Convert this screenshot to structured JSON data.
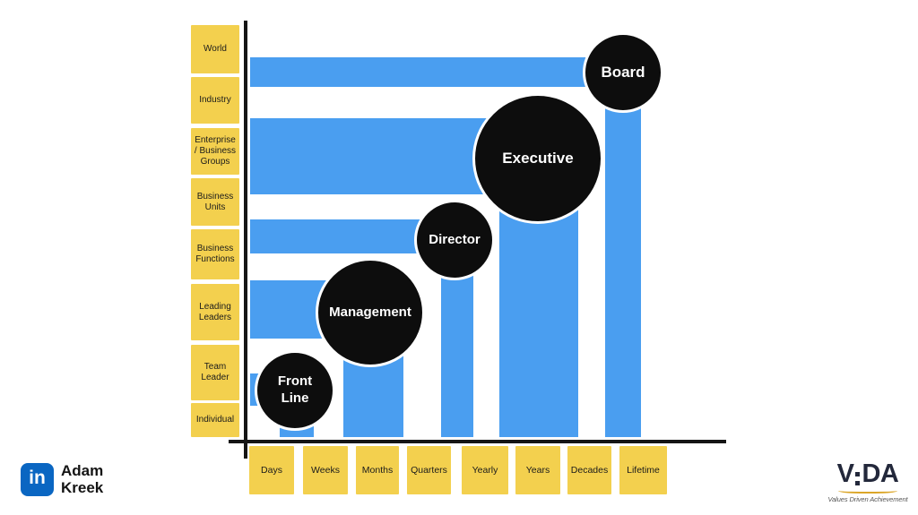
{
  "y_axis": {
    "labels": [
      "World",
      "Industry",
      "Enterprise / Business Groups",
      "Business Units",
      "Business Functions",
      "Leading Leaders",
      "Team Leader",
      "Individual"
    ]
  },
  "x_axis": {
    "labels": [
      "Days",
      "Weeks",
      "Months",
      "Quarters",
      "Yearly",
      "Years",
      "Decades",
      "Lifetime"
    ]
  },
  "roles": [
    {
      "label": "Front Line",
      "lines": [
        "Front",
        "Line"
      ]
    },
    {
      "label": "Management"
    },
    {
      "label": "Director"
    },
    {
      "label": "Executive"
    },
    {
      "label": "Board"
    }
  ],
  "branding": {
    "author": {
      "icon": "linkedin-icon",
      "icon_text": "in",
      "name": "Adam Kreek"
    },
    "vida": {
      "wordmark": "VIDA",
      "wordmark_v": "V",
      "wordmark_da": "DA",
      "tagline": "Values Driven Achievement"
    }
  },
  "colors": {
    "bar_blue": "#4A9EF0",
    "label_yellow": "#F3D04E",
    "bubble_black": "#0D0D0D",
    "axis_black": "#151515",
    "linkedin_blue": "#0A66C2",
    "vida_navy": "#23283B",
    "vida_gold": "#DBA628",
    "tagline_gray": "#555555"
  }
}
